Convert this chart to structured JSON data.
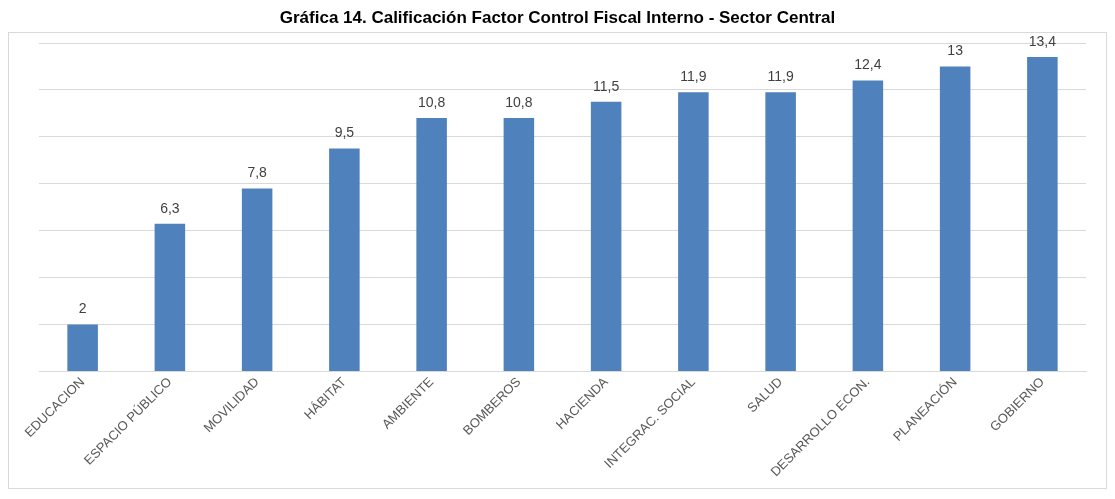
{
  "chart_data": {
    "type": "bar",
    "title": "Gráfica 14. Calificación Factor Control Fiscal Interno - Sector Central",
    "categories": [
      "EDUCACION",
      "ESPACIO PÚBLICO",
      "MOVILIDAD",
      "HÁBITAT",
      "AMBIENTE",
      "BOMBEROS",
      "HACIENDA",
      "INTEGRAC. SOCIAL",
      "SALUD",
      "DESARROLLO ECON.",
      "PLANEACIÓN",
      "GOBIERNO"
    ],
    "values": [
      2,
      6.3,
      7.8,
      9.5,
      10.8,
      10.8,
      11.5,
      11.9,
      11.9,
      12.4,
      13,
      13.4
    ],
    "value_labels": [
      "2",
      "6,3",
      "7,8",
      "9,5",
      "10,8",
      "10,8",
      "11,5",
      "11,9",
      "11,9",
      "12,4",
      "13",
      "13,4"
    ],
    "color": "#4f81bd",
    "ylim": [
      0,
      14
    ],
    "yticks": [
      {
        "value": 0,
        "label": null
      },
      {
        "value": 2,
        "label": null
      },
      {
        "value": 4,
        "label": null
      },
      {
        "value": 6,
        "label": null
      },
      {
        "value": 8,
        "label": null
      },
      {
        "value": 10,
        "label": null
      },
      {
        "value": 12,
        "label": null
      },
      {
        "value": 14,
        "label": null
      }
    ],
    "grid": "y",
    "tick_labels": "x",
    "legend": false
  }
}
